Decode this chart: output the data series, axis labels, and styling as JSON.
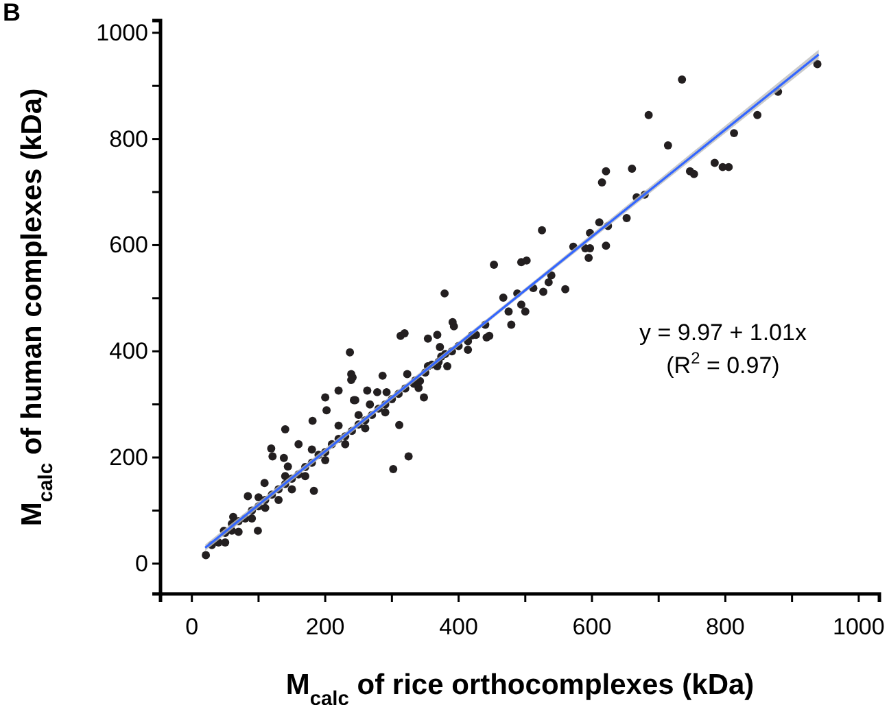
{
  "chart_data": {
    "type": "scatter",
    "xlabel": "M$_{calc}$ of rice orthocomplexes (kDa)",
    "ylabel": "M$_{calc}$ of human complexes (kDa)",
    "annotations": [
      "B",
      "y = 9.97 + 1.01x",
      "(R$^{2}$ = 0.97)"
    ],
    "xlim": [
      -47,
      1031
    ],
    "ylim": [
      -57,
      1023
    ],
    "xticks": [
      0,
      {
        "value": 100,
        "label": null
      },
      200,
      {
        "value": 300,
        "label": null
      },
      400,
      {
        "value": 500,
        "label": null
      },
      600,
      {
        "value": 700,
        "label": null
      },
      800,
      {
        "value": 900,
        "label": null
      },
      1000
    ],
    "yticks": [
      0,
      {
        "value": 100,
        "label": null
      },
      200,
      {
        "value": 300,
        "label": null
      },
      400,
      {
        "value": 500,
        "label": null
      },
      600,
      {
        "value": 700,
        "label": null
      },
      800,
      {
        "value": 900,
        "label": null
      },
      1000
    ],
    "grid": false,
    "series": [
      {
        "color": "#231f20",
        "marker": "circle",
        "x": [
          685,
          735,
          714,
          784,
          805,
          813,
          848,
          879,
          938,
          621,
          615,
          660,
          747,
          753,
          796,
          679,
          667,
          652,
          611,
          624,
          597,
          525,
          572,
          590,
          597,
          621,
          595,
          539,
          535,
          560,
          527,
          512,
          494,
          502,
          453,
          488,
          467,
          475,
          494,
          500,
          479,
          379,
          393,
          446,
          442,
          426,
          414,
          414,
          354,
          368,
          313,
          319,
          391,
          372,
          374,
          383,
          354,
          368,
          286,
          237,
          239,
          239,
          263,
          278,
          292,
          243,
          267,
          342,
          340,
          348,
          311,
          302,
          325,
          333,
          323,
          241,
          220,
          200,
          202,
          245,
          140,
          181,
          119,
          160,
          138,
          121,
          144,
          109,
          183,
          84,
          62,
          48,
          99,
          21,
          30,
          40,
          50,
          60,
          70,
          80,
          90,
          100,
          110,
          120,
          130,
          140,
          150,
          160,
          170,
          180,
          190,
          200,
          210,
          220,
          230,
          240,
          250,
          260,
          270,
          280,
          290,
          300,
          310,
          320,
          335,
          350,
          360,
          370,
          380,
          390,
          50,
          70,
          90,
          110,
          130,
          150,
          170,
          200,
          230,
          260,
          290,
          60,
          100,
          140,
          180,
          220,
          250,
          400,
          420,
          440
        ],
        "values": [
          845,
          912,
          788,
          755,
          747,
          811,
          845,
          889,
          941,
          739,
          718,
          744,
          739,
          734,
          747,
          695,
          690,
          651,
          643,
          636,
          623,
          628,
          597,
          594,
          594,
          599,
          576,
          543,
          530,
          517,
          512,
          519,
          568,
          571,
          563,
          509,
          501,
          475,
          488,
          475,
          450,
          509,
          447,
          429,
          426,
          431,
          419,
          403,
          424,
          431,
          429,
          434,
          455,
          408,
          390,
          372,
          372,
          372,
          354,
          398,
          357,
          346,
          326,
          323,
          323,
          308,
          300,
          344,
          331,
          313,
          261,
          178,
          202,
          339,
          357,
          351,
          326,
          313,
          289,
          308,
          253,
          269,
          217,
          225,
          199,
          202,
          183,
          152,
          137,
          127,
          88,
          62,
          62,
          16,
          35,
          40,
          58,
          62,
          80,
          85,
          100,
          108,
          120,
          130,
          140,
          150,
          160,
          168,
          182,
          190,
          205,
          210,
          225,
          235,
          240,
          250,
          262,
          270,
          280,
          292,
          300,
          310,
          320,
          330,
          345,
          360,
          375,
          380,
          395,
          400,
          40,
          60,
          85,
          105,
          120,
          140,
          165,
          195,
          225,
          255,
          285,
          75,
          125,
          165,
          215,
          260,
          280,
          410,
          430,
          450
        ]
      },
      {
        "type": "line",
        "color": "#3366ff",
        "x": [
          20,
          480,
          940
        ],
        "values": [
          30,
          495,
          959
        ],
        "lower": [
          24,
          491,
          951
        ],
        "upper": [
          36,
          499,
          968
        ],
        "marker": "none"
      }
    ]
  }
}
